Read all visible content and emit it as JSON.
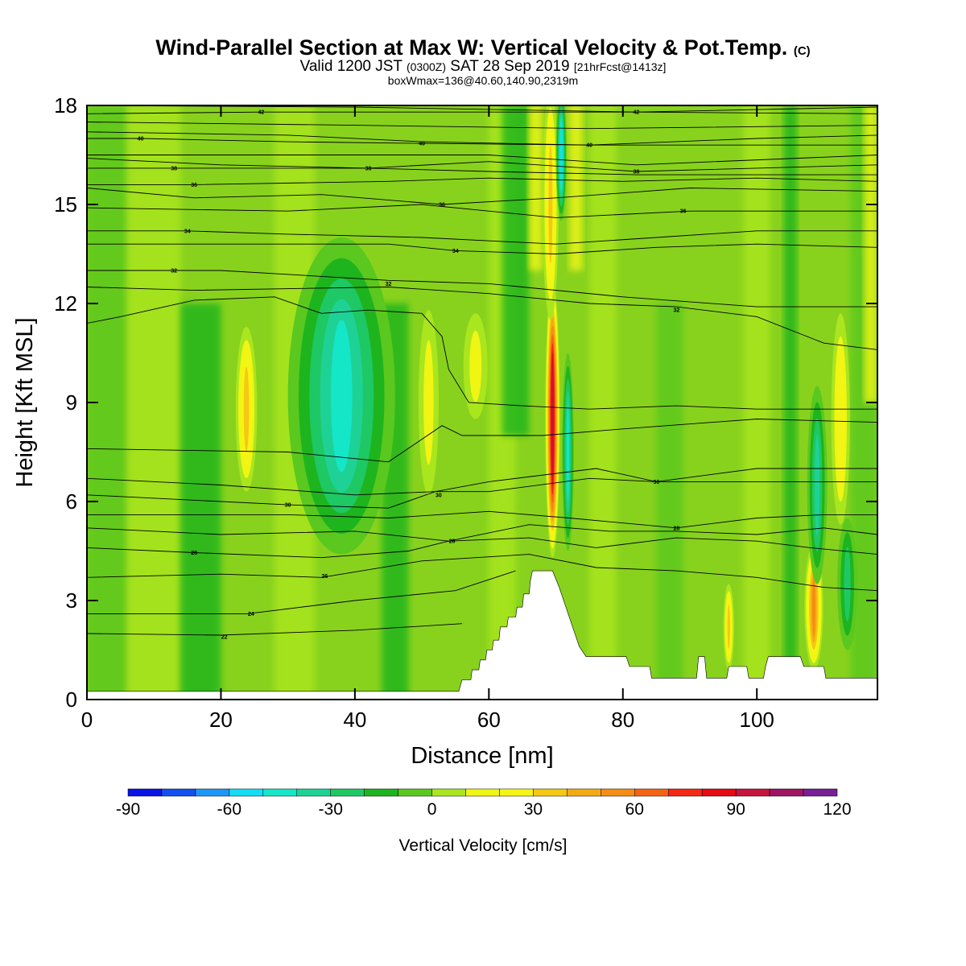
{
  "titles": {
    "main": "Wind-Parallel Section at Max W: Vertical Velocity & Pot.Temp.",
    "copyright": "(C)",
    "valid_prefix": "Valid 1200 JST",
    "valid_z": "(0300Z)",
    "valid_date": "SAT 28 Sep 2019",
    "forecast": "[21hrFcst@1413z]",
    "box_info": "boxWmax=136@40.60,140.90,2319m"
  },
  "chart_data": {
    "type": "heatmap",
    "title": "Wind-Parallel Section at Max W: Vertical Velocity & Pot.Temp.",
    "xlabel": "Distance [nm]",
    "ylabel": "Height [Kft MSL]",
    "xlim": [
      0,
      118
    ],
    "ylim": [
      0,
      18
    ],
    "x_ticks": [
      0,
      20,
      40,
      60,
      80,
      100
    ],
    "y_ticks": [
      0,
      3,
      6,
      9,
      12,
      15,
      18
    ],
    "colorbar": {
      "label": "Vertical Velocity [cm/s]",
      "ticks": [
        -90,
        -60,
        -30,
        0,
        30,
        60,
        90,
        120
      ],
      "levels": [
        -90,
        -80,
        -70,
        -60,
        -50,
        -40,
        -30,
        -20,
        -10,
        0,
        10,
        20,
        30,
        40,
        50,
        60,
        70,
        80,
        90,
        100,
        110,
        120
      ],
      "colors": [
        "#0a14e6",
        "#1450f0",
        "#1e96f5",
        "#14dcf5",
        "#14e6c8",
        "#1ed296",
        "#1ec864",
        "#1eb41e",
        "#5ac81e",
        "#aae61e",
        "#f0f514",
        "#f5f514",
        "#f5c814",
        "#f5aa14",
        "#f58c14",
        "#f56414",
        "#f52814",
        "#e60a14",
        "#c8143c",
        "#a01464",
        "#781e96"
      ]
    },
    "features": [
      {
        "name": "downdraft core",
        "x": 38.5,
        "y": 8.8,
        "value": -80,
        "rx": 5.5,
        "ry": 3.6
      },
      {
        "name": "downdraft ring",
        "x": 38,
        "y": 9.2,
        "value": -50,
        "rx": 8,
        "ry": 4.8
      },
      {
        "name": "updraft column",
        "x": 69.5,
        "y": 8.5,
        "value": 100,
        "rx": 1.1,
        "ry": 4.2
      },
      {
        "name": "updraft column upper",
        "x": 69.2,
        "y": 15,
        "value": 35,
        "rx": 1.2,
        "ry": 3.5
      },
      {
        "name": "downdraft sheath",
        "x": 71.8,
        "y": 7.5,
        "value": -50,
        "rx": 0.9,
        "ry": 3.0
      },
      {
        "name": "downdraft sheath upper",
        "x": 70.8,
        "y": 16.5,
        "value": -55,
        "rx": 0.8,
        "ry": 2.0
      },
      {
        "name": "updraft west",
        "x": 23.8,
        "y": 8.8,
        "value": 35,
        "rx": 1.6,
        "ry": 2.5
      },
      {
        "name": "updraft center",
        "x": 51,
        "y": 9.0,
        "value": 18,
        "rx": 1.5,
        "ry": 2.8
      },
      {
        "name": "updraft center 2",
        "x": 58,
        "y": 10.1,
        "value": 20,
        "rx": 1.8,
        "ry": 1.6
      },
      {
        "name": "updraft east",
        "x": 112.5,
        "y": 8.5,
        "value": 28,
        "rx": 1.4,
        "ry": 3.2
      },
      {
        "name": "updraft low east",
        "x": 108.5,
        "y": 2.8,
        "value": 55,
        "rx": 1.4,
        "ry": 1.9
      },
      {
        "name": "updraft low",
        "x": 95.8,
        "y": 2.2,
        "value": 40,
        "rx": 0.8,
        "ry": 1.3
      },
      {
        "name": "downdraft east",
        "x": 109,
        "y": 6.5,
        "value": -32,
        "rx": 1.5,
        "ry": 3.0
      },
      {
        "name": "downdraft far east",
        "x": 113.5,
        "y": 3.5,
        "value": -28,
        "rx": 1.5,
        "ry": 2.0
      }
    ],
    "terrain": [
      [
        0,
        0.25
      ],
      [
        55.5,
        0.25
      ],
      [
        56,
        0.6
      ],
      [
        57.3,
        0.6
      ],
      [
        57.5,
        0.9
      ],
      [
        58.5,
        0.9
      ],
      [
        58.7,
        1.2
      ],
      [
        59.5,
        1.2
      ],
      [
        59.7,
        1.5
      ],
      [
        60.5,
        1.5
      ],
      [
        60.7,
        1.8
      ],
      [
        61.5,
        1.8
      ],
      [
        61.7,
        2.2
      ],
      [
        62.7,
        2.2
      ],
      [
        62.9,
        2.5
      ],
      [
        64,
        2.5
      ],
      [
        64.2,
        2.8
      ],
      [
        65,
        2.8
      ],
      [
        65.2,
        3.2
      ],
      [
        66,
        3.2
      ],
      [
        66.2,
        3.6
      ],
      [
        66.5,
        3.9
      ],
      [
        69.5,
        3.9
      ],
      [
        70.5,
        3.4
      ],
      [
        71.5,
        2.8
      ],
      [
        72.5,
        2.2
      ],
      [
        73.5,
        1.6
      ],
      [
        74.5,
        1.3
      ],
      [
        80.5,
        1.3
      ],
      [
        81,
        1.0
      ],
      [
        84,
        1.0
      ],
      [
        84.3,
        0.65
      ],
      [
        91,
        0.65
      ],
      [
        91.3,
        1.3
      ],
      [
        92.2,
        1.3
      ],
      [
        92.5,
        0.65
      ],
      [
        95.5,
        0.65
      ],
      [
        95.8,
        1.0
      ],
      [
        98.5,
        1.0
      ],
      [
        98.8,
        0.65
      ],
      [
        101,
        0.65
      ],
      [
        101.3,
        1.0
      ],
      [
        101.7,
        1.3
      ],
      [
        106.5,
        1.3
      ],
      [
        107,
        1.0
      ],
      [
        110,
        1.0
      ],
      [
        110.3,
        0.65
      ],
      [
        118,
        0.65
      ]
    ],
    "theta_contours": [
      {
        "label": "22",
        "pts": [
          [
            0,
            2.0
          ],
          [
            20,
            1.95
          ],
          [
            40,
            2.1
          ],
          [
            56,
            2.3
          ]
        ],
        "label_at": [
          20.5,
          1.9
        ]
      },
      {
        "label": "24",
        "pts": [
          [
            0,
            2.6
          ],
          [
            24,
            2.6
          ],
          [
            40,
            3.0
          ],
          [
            55,
            3.3
          ],
          [
            64,
            3.9
          ]
        ],
        "label_at": [
          24.5,
          2.6
        ]
      },
      {
        "label": "26",
        "pts": [
          [
            0,
            3.7
          ],
          [
            20,
            3.8
          ],
          [
            35,
            3.7
          ],
          [
            50,
            4.2
          ],
          [
            66,
            4.4
          ],
          [
            76,
            4.0
          ],
          [
            88,
            3.9
          ],
          [
            100,
            3.7
          ],
          [
            110,
            3.4
          ],
          [
            118,
            3.3
          ]
        ],
        "label_at": [
          35.5,
          3.75
        ]
      },
      {
        "label": "28",
        "pts": [
          [
            0,
            4.6
          ],
          [
            16,
            4.45
          ],
          [
            35,
            4.3
          ],
          [
            48,
            4.5
          ],
          [
            54,
            4.8
          ],
          [
            66,
            4.9
          ],
          [
            76,
            4.6
          ],
          [
            88,
            4.9
          ],
          [
            100,
            4.8
          ],
          [
            108,
            4.6
          ],
          [
            118,
            4.4
          ]
        ],
        "label_at": [
          16,
          4.45
        ]
      },
      {
        "label": "28",
        "pts": [
          [
            0,
            5.2
          ],
          [
            20,
            5.0
          ],
          [
            40,
            5.1
          ],
          [
            54,
            4.8
          ],
          [
            66,
            5.3
          ],
          [
            78,
            5.1
          ],
          [
            88,
            5.1
          ],
          [
            100,
            5.0
          ],
          [
            110,
            5.2
          ],
          [
            118,
            5.0
          ]
        ],
        "label_at": [
          54.5,
          4.8
        ]
      },
      {
        "label": "28",
        "pts": [
          [
            0,
            5.6
          ],
          [
            30,
            5.6
          ],
          [
            45,
            5.5
          ],
          [
            60,
            5.7
          ],
          [
            72,
            5.5
          ],
          [
            88,
            5.2
          ],
          [
            100,
            5.5
          ],
          [
            110,
            5.6
          ],
          [
            118,
            5.6
          ]
        ],
        "label_at": [
          88,
          5.2
        ]
      },
      {
        "label": "30",
        "pts": [
          [
            0,
            6.2
          ],
          [
            30,
            5.9
          ],
          [
            45,
            5.8
          ],
          [
            52,
            6.3
          ],
          [
            60,
            6.3
          ],
          [
            75,
            6.7
          ],
          [
            85,
            6.6
          ],
          [
            100,
            6.6
          ],
          [
            118,
            6.6
          ]
        ],
        "label_at": [
          30,
          5.9
        ]
      },
      {
        "label": "30",
        "pts": [
          [
            0,
            6.7
          ],
          [
            20,
            6.5
          ],
          [
            40,
            6.2
          ],
          [
            52,
            6.3
          ],
          [
            60,
            6.6
          ],
          [
            76,
            7.0
          ],
          [
            85,
            6.6
          ],
          [
            100,
            7.0
          ],
          [
            118,
            7.0
          ]
        ],
        "label_at": [
          85,
          6.6
        ]
      },
      {
        "label": "30",
        "pts": [
          [
            0,
            7.6
          ],
          [
            30,
            7.5
          ],
          [
            45,
            7.2
          ],
          [
            53,
            8.3
          ],
          [
            56,
            8.0
          ],
          [
            68,
            8.0
          ],
          [
            80,
            8.2
          ],
          [
            100,
            8.5
          ],
          [
            118,
            8.4
          ]
        ],
        "label_at": [
          52.5,
          6.2
        ]
      },
      {
        "label": "32",
        "pts": [
          [
            0,
            11.4
          ],
          [
            5,
            11.6
          ],
          [
            16,
            12.1
          ],
          [
            28,
            12.2
          ],
          [
            35,
            11.7
          ],
          [
            42,
            11.8
          ],
          [
            50,
            11.7
          ],
          [
            53,
            11.0
          ],
          [
            54,
            10.0
          ],
          [
            57,
            9.0
          ],
          [
            65,
            8.9
          ],
          [
            75,
            8.8
          ],
          [
            88,
            8.9
          ],
          [
            100,
            8.8
          ],
          [
            118,
            8.8
          ]
        ],
        "label_at": [
          88,
          11.8
        ]
      },
      {
        "label": "32",
        "pts": [
          [
            0,
            12.5
          ],
          [
            16,
            12.4
          ],
          [
            45,
            12.5
          ],
          [
            60,
            12.3
          ],
          [
            75,
            12.0
          ],
          [
            88,
            11.9
          ],
          [
            100,
            11.6
          ],
          [
            110,
            10.8
          ],
          [
            118,
            10.6
          ]
        ],
        "label_at": [
          13,
          13.0
        ]
      },
      {
        "label": "32",
        "pts": [
          [
            0,
            13.0
          ],
          [
            20,
            13.0
          ],
          [
            45,
            12.7
          ],
          [
            60,
            12.6
          ],
          [
            80,
            12.2
          ],
          [
            100,
            11.9
          ],
          [
            118,
            11.9
          ]
        ],
        "label_at": [
          45,
          12.6
        ]
      },
      {
        "label": "34",
        "pts": [
          [
            0,
            13.8
          ],
          [
            20,
            13.8
          ],
          [
            45,
            13.8
          ],
          [
            55,
            13.6
          ],
          [
            70,
            13.5
          ],
          [
            85,
            13.7
          ],
          [
            100,
            13.8
          ],
          [
            118,
            13.7
          ]
        ],
        "label_at": [
          55,
          13.6
        ]
      },
      {
        "label": "34",
        "pts": [
          [
            0,
            14.2
          ],
          [
            15,
            14.2
          ],
          [
            30,
            14.1
          ],
          [
            50,
            14.0
          ],
          [
            70,
            13.8
          ],
          [
            85,
            14.0
          ],
          [
            100,
            14.2
          ],
          [
            118,
            14.2
          ]
        ],
        "label_at": [
          15,
          14.2
        ]
      },
      {
        "label": "36",
        "pts": [
          [
            0,
            14.9
          ],
          [
            30,
            14.8
          ],
          [
            50,
            15.0
          ],
          [
            70,
            14.6
          ],
          [
            90,
            14.8
          ],
          [
            118,
            14.8
          ]
        ],
        "label_at": [
          89,
          14.8
        ]
      },
      {
        "label": "36",
        "pts": [
          [
            0,
            15.5
          ],
          [
            16,
            15.2
          ],
          [
            35,
            15.3
          ],
          [
            53,
            15.0
          ],
          [
            70,
            15.2
          ],
          [
            90,
            15.5
          ],
          [
            118,
            15.4
          ]
        ],
        "label_at": [
          53,
          15.0
        ]
      },
      {
        "label": "36",
        "pts": [
          [
            0,
            15.6
          ],
          [
            16,
            15.6
          ],
          [
            45,
            15.7
          ],
          [
            60,
            15.8
          ],
          [
            80,
            15.7
          ],
          [
            100,
            15.8
          ],
          [
            118,
            15.7
          ]
        ],
        "label_at": [
          16,
          15.6
        ]
      },
      {
        "label": "38",
        "pts": [
          [
            0,
            16.1
          ],
          [
            13,
            16.1
          ],
          [
            30,
            16.1
          ],
          [
            42,
            16.1
          ],
          [
            60,
            16.0
          ],
          [
            82,
            15.9
          ],
          [
            100,
            15.9
          ],
          [
            118,
            15.9
          ]
        ],
        "label_at": [
          13,
          16.1
        ]
      },
      {
        "label": "38",
        "pts": [
          [
            0,
            16.4
          ],
          [
            20,
            16.2
          ],
          [
            42,
            16.1
          ],
          [
            60,
            16.3
          ],
          [
            82,
            16.0
          ],
          [
            118,
            16.2
          ]
        ],
        "label_at": [
          42,
          16.1
        ]
      },
      {
        "label": "38",
        "pts": [
          [
            0,
            16.5
          ],
          [
            30,
            16.5
          ],
          [
            60,
            16.5
          ],
          [
            82,
            16.2
          ],
          [
            118,
            16.5
          ]
        ],
        "label_at": [
          82,
          16.0
        ]
      },
      {
        "label": "40",
        "pts": [
          [
            0,
            17.0
          ],
          [
            8,
            17.0
          ],
          [
            30,
            16.9
          ],
          [
            50,
            16.85
          ],
          [
            75,
            16.8
          ],
          [
            100,
            16.8
          ],
          [
            118,
            16.8
          ]
        ],
        "label_at": [
          8,
          17.0
        ]
      },
      {
        "label": "40",
        "pts": [
          [
            0,
            17.2
          ],
          [
            30,
            17.1
          ],
          [
            50,
            16.9
          ],
          [
            75,
            16.8
          ],
          [
            100,
            17.0
          ],
          [
            118,
            17.1
          ]
        ],
        "label_at": [
          50,
          16.85
        ]
      },
      {
        "label": "40",
        "pts": [
          [
            0,
            17.5
          ],
          [
            40,
            17.4
          ],
          [
            75,
            17.3
          ],
          [
            118,
            17.4
          ]
        ],
        "label_at": [
          75,
          16.8
        ]
      },
      {
        "label": "42",
        "pts": [
          [
            0,
            17.75
          ],
          [
            26,
            17.8
          ],
          [
            60,
            17.8
          ],
          [
            82,
            17.8
          ],
          [
            118,
            17.75
          ]
        ],
        "label_at": [
          26,
          17.8
        ]
      },
      {
        "label": "42",
        "pts": [
          [
            0,
            18.0
          ],
          [
            40,
            17.95
          ],
          [
            82,
            17.8
          ],
          [
            118,
            17.95
          ]
        ],
        "label_at": [
          82,
          17.8
        ]
      }
    ]
  }
}
